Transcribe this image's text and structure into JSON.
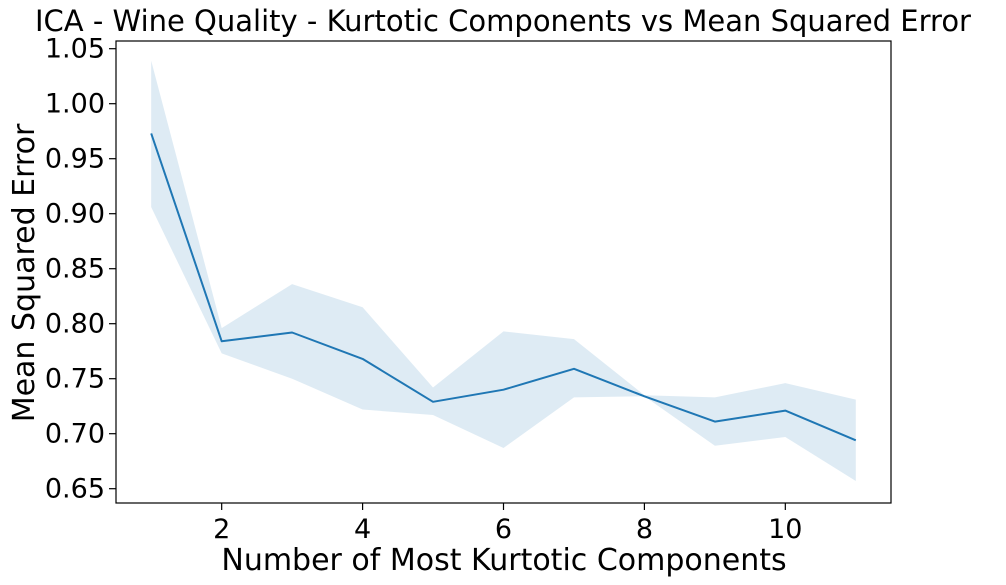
{
  "chart_data": {
    "type": "line",
    "title": "ICA - Wine Quality - Kurtotic Components vs Mean Squared Error",
    "xlabel": "Number of Most Kurtotic Components",
    "ylabel": "Mean Squared Error",
    "xlim": [
      0.5,
      11.5
    ],
    "ylim": [
      0.637,
      1.057
    ],
    "xticks": [
      2,
      4,
      6,
      8,
      10
    ],
    "xtick_labels": [
      "2",
      "4",
      "6",
      "8",
      "10"
    ],
    "yticks": [
      0.65,
      0.7,
      0.75,
      0.8,
      0.85,
      0.9,
      0.95,
      1.0,
      1.05
    ],
    "ytick_labels": [
      "0.65",
      "0.70",
      "0.75",
      "0.80",
      "0.85",
      "0.90",
      "0.95",
      "1.00",
      "1.05"
    ],
    "grid": false,
    "x": [
      1,
      2,
      3,
      4,
      5,
      6,
      7,
      8,
      9,
      10,
      11
    ],
    "series": [
      {
        "values": [
          0.973,
          0.784,
          0.792,
          0.768,
          0.729,
          0.74,
          0.759,
          0.734,
          0.711,
          0.721,
          0.694
        ],
        "upper": [
          1.039,
          0.796,
          0.836,
          0.815,
          0.742,
          0.793,
          0.786,
          0.735,
          0.733,
          0.746,
          0.731
        ],
        "lower": [
          0.906,
          0.773,
          0.75,
          0.722,
          0.717,
          0.687,
          0.733,
          0.734,
          0.689,
          0.697,
          0.657
        ]
      }
    ],
    "colors": {
      "line": "#1f77b4",
      "band": "#1f77b4"
    }
  }
}
